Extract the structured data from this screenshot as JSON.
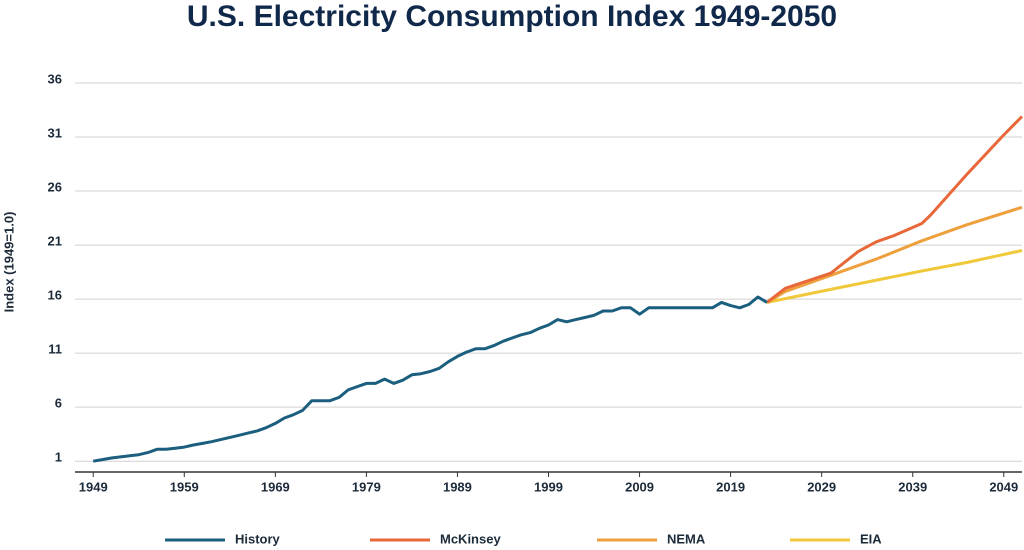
{
  "chart_data": {
    "type": "line",
    "title": "U.S. Electricity Consumption Index 1949-2050",
    "y_label": "Index (1949=1.0)",
    "xlim": [
      1947,
      2051
    ],
    "xticks": [
      1949,
      1959,
      1969,
      1979,
      1989,
      1999,
      2009,
      2019,
      2029,
      2039,
      2049
    ],
    "ylim": [
      0,
      36
    ],
    "yticks": [
      1,
      6,
      11,
      16,
      21,
      26,
      31,
      36
    ],
    "grid": true,
    "legend": "bottom",
    "series": [
      {
        "name": "History",
        "color": "#1b5e7e",
        "x": [
          1949,
          1950,
          1951,
          1952,
          1953,
          1954,
          1955,
          1956,
          1957,
          1958,
          1959,
          1960,
          1961,
          1962,
          1963,
          1964,
          1965,
          1966,
          1967,
          1968,
          1969,
          1970,
          1971,
          1972,
          1973,
          1974,
          1975,
          1976,
          1977,
          1978,
          1979,
          1980,
          1981,
          1982,
          1983,
          1984,
          1985,
          1986,
          1987,
          1988,
          1989,
          1990,
          1991,
          1992,
          1993,
          1994,
          1995,
          1996,
          1997,
          1998,
          1999,
          2000,
          2001,
          2002,
          2003,
          2004,
          2005,
          2006,
          2007,
          2008,
          2009,
          2010,
          2011,
          2012,
          2013,
          2014,
          2015,
          2016,
          2017,
          2018,
          2019,
          2020,
          2021,
          2022,
          2023
        ],
        "values": [
          1.0,
          1.15,
          1.3,
          1.4,
          1.5,
          1.6,
          1.8,
          2.1,
          2.1,
          2.2,
          2.3,
          2.5,
          2.65,
          2.8,
          3.0,
          3.2,
          3.4,
          3.6,
          3.8,
          4.1,
          4.5,
          5.0,
          5.3,
          5.7,
          6.6,
          6.6,
          6.6,
          6.9,
          7.6,
          7.9,
          8.2,
          8.2,
          8.6,
          8.2,
          8.5,
          9.0,
          9.1,
          9.3,
          9.6,
          10.2,
          10.7,
          11.1,
          11.4,
          11.4,
          11.7,
          12.1,
          12.4,
          12.7,
          12.9,
          13.3,
          13.6,
          14.1,
          13.9,
          14.1,
          14.3,
          14.5,
          14.9,
          14.9,
          15.2,
          15.2,
          14.6,
          15.2,
          15.2,
          15.2,
          15.2,
          15.2,
          15.2,
          15.2,
          15.2,
          15.7,
          15.4,
          15.2,
          15.5,
          16.2,
          15.7
        ]
      },
      {
        "name": "McKinsey",
        "color": "#e8683a",
        "x": [
          2023,
          2025,
          2030,
          2033,
          2035,
          2037,
          2040,
          2041,
          2045,
          2049,
          2051
        ],
        "values": [
          15.7,
          17.0,
          18.4,
          20.4,
          21.3,
          21.9,
          23.0,
          23.8,
          27.6,
          31.2,
          32.9
        ]
      },
      {
        "name": "NEMA",
        "color": "#eea03c",
        "x": [
          2023,
          2025,
          2030,
          2035,
          2040,
          2045,
          2051
        ],
        "values": [
          15.7,
          16.7,
          18.2,
          19.7,
          21.4,
          22.9,
          24.5
        ]
      },
      {
        "name": "EIA",
        "color": "#f0c93a",
        "x": [
          2023,
          2030,
          2040,
          2045,
          2051
        ],
        "values": [
          15.7,
          16.9,
          18.6,
          19.4,
          20.5
        ]
      }
    ]
  }
}
